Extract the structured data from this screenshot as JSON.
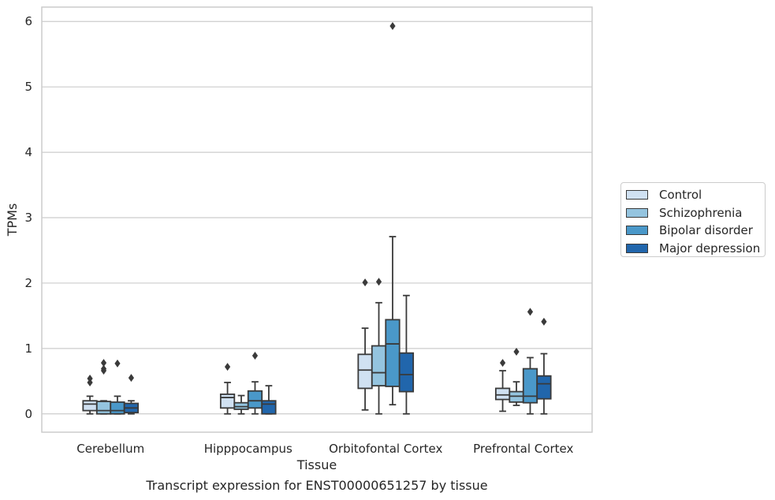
{
  "chart_data": {
    "type": "box",
    "caption": "Transcript expression for ENST00000651257 by tissue",
    "xlabel": "Tissue",
    "ylabel": "TPMs",
    "ylim": [
      -0.28,
      6.22
    ],
    "yticks": [
      0,
      1,
      2,
      3,
      4,
      5,
      6
    ],
    "grid": "horizontal",
    "legend_position": "right",
    "categories": [
      "Cerebellum",
      "Hipppocampus",
      "Orbitofontal Cortex",
      "Prefrontal Cortex"
    ],
    "series": [
      {
        "name": "Control",
        "color": "#d0e1f2",
        "boxes": [
          {
            "whislo": 0.0,
            "q1": 0.05,
            "med": 0.15,
            "q3": 0.2,
            "whishi": 0.27,
            "fliers": [
              0.48,
              0.54
            ]
          },
          {
            "whislo": 0.0,
            "q1": 0.09,
            "med": 0.25,
            "q3": 0.3,
            "whishi": 0.48,
            "fliers": [
              0.72
            ]
          },
          {
            "whislo": 0.06,
            "q1": 0.39,
            "med": 0.67,
            "q3": 0.91,
            "whishi": 1.31,
            "fliers": [
              2.01
            ]
          },
          {
            "whislo": 0.04,
            "q1": 0.22,
            "med": 0.29,
            "q3": 0.39,
            "whishi": 0.66,
            "fliers": [
              0.78
            ]
          }
        ]
      },
      {
        "name": "Schizophrenia",
        "color": "#94c4df",
        "boxes": [
          {
            "whislo": 0.0,
            "q1": 0.0,
            "med": 0.05,
            "q3": 0.19,
            "whishi": 0.2,
            "fliers": [
              0.66,
              0.69,
              0.78
            ]
          },
          {
            "whislo": 0.0,
            "q1": 0.07,
            "med": 0.11,
            "q3": 0.17,
            "whishi": 0.28,
            "fliers": []
          },
          {
            "whislo": 0.0,
            "q1": 0.43,
            "med": 0.63,
            "q3": 1.04,
            "whishi": 1.7,
            "fliers": [
              2.02
            ]
          },
          {
            "whislo": 0.13,
            "q1": 0.18,
            "med": 0.27,
            "q3": 0.34,
            "whishi": 0.49,
            "fliers": [
              0.95
            ]
          }
        ]
      },
      {
        "name": "Bipolar disorder",
        "color": "#4a98c9",
        "boxes": [
          {
            "whislo": 0.0,
            "q1": 0.0,
            "med": 0.05,
            "q3": 0.18,
            "whishi": 0.27,
            "fliers": [
              0.77
            ]
          },
          {
            "whislo": 0.0,
            "q1": 0.09,
            "med": 0.2,
            "q3": 0.35,
            "whishi": 0.49,
            "fliers": [
              0.89
            ]
          },
          {
            "whislo": 0.14,
            "q1": 0.42,
            "med": 1.07,
            "q3": 1.44,
            "whishi": 2.71,
            "fliers": [
              5.93
            ]
          },
          {
            "whislo": 0.0,
            "q1": 0.17,
            "med": 0.27,
            "q3": 0.69,
            "whishi": 0.86,
            "fliers": [
              1.56
            ]
          }
        ]
      },
      {
        "name": "Major depression",
        "color": "#2166ac",
        "boxes": [
          {
            "whislo": 0.0,
            "q1": 0.02,
            "med": 0.09,
            "q3": 0.16,
            "whishi": 0.2,
            "fliers": [
              0.55
            ]
          },
          {
            "whislo": 0.0,
            "q1": 0.0,
            "med": 0.15,
            "q3": 0.2,
            "whishi": 0.43,
            "fliers": []
          },
          {
            "whislo": 0.0,
            "q1": 0.34,
            "med": 0.6,
            "q3": 0.93,
            "whishi": 1.81,
            "fliers": []
          },
          {
            "whislo": 0.0,
            "q1": 0.23,
            "med": 0.46,
            "q3": 0.58,
            "whishi": 0.92,
            "fliers": [
              1.41
            ]
          }
        ]
      }
    ]
  }
}
